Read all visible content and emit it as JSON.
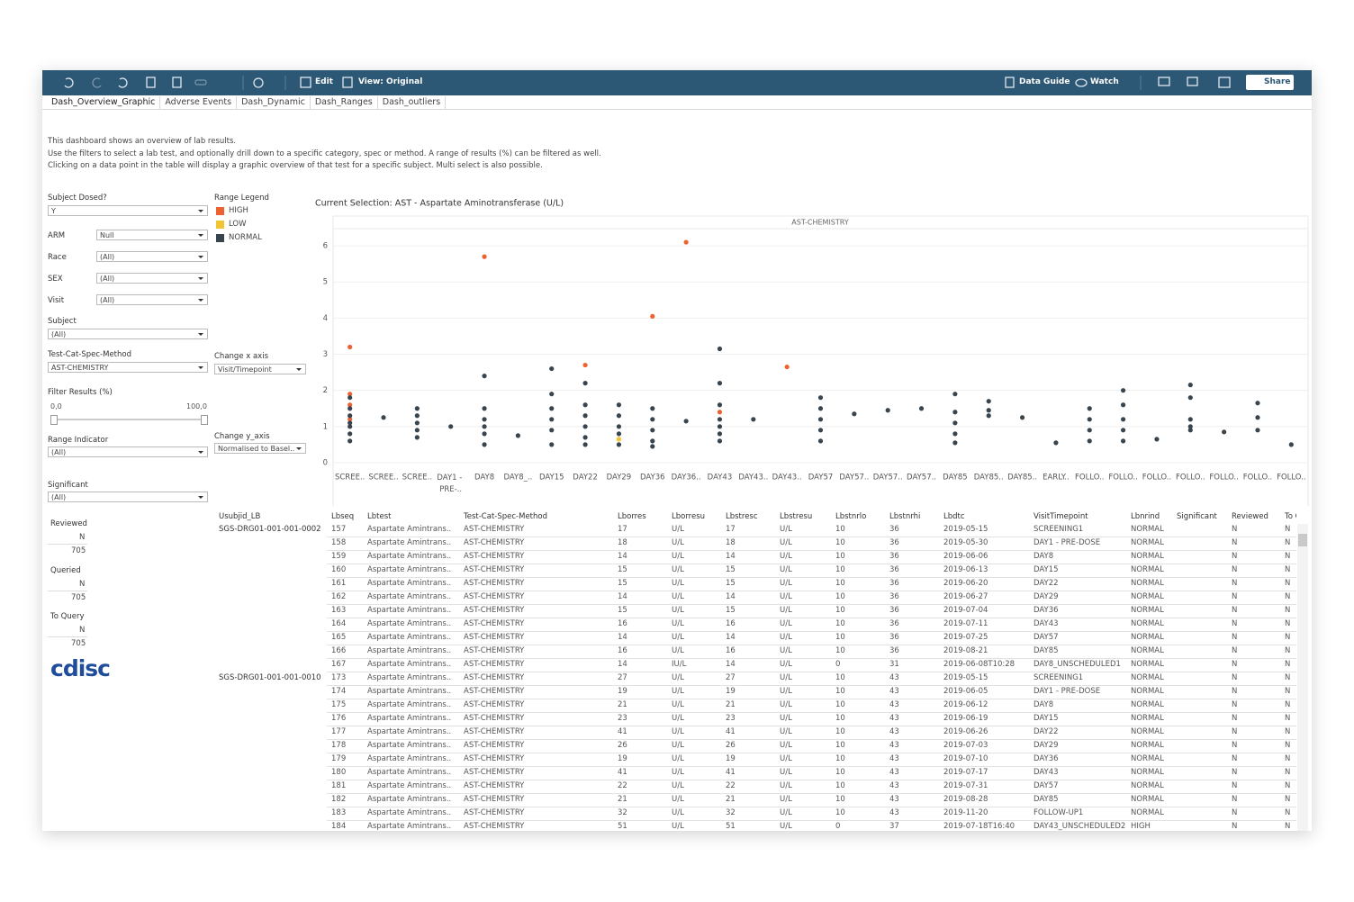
{
  "toolbar": {
    "edit": "Edit",
    "view": "View: Original",
    "data_guide": "Data Guide",
    "watch": "Watch",
    "share": "Share"
  },
  "tabs": [
    "Dash_Overview_Graphic",
    "Adverse Events",
    "Dash_Dynamic",
    "Dash_Ranges",
    "Dash_outliers"
  ],
  "description": [
    "This dashboard shows an overview of lab results.",
    "Use the filters to select a lab test, and optionally drill down to a specific category, spec or method. A range of results (%) can be filtered as well.",
    "Clicking on a data point in the table will display a graphic overview of that test for a specific subject. Multi select is also possible."
  ],
  "filters": {
    "subject_dosed": {
      "label": "Subject Dosed?",
      "value": "Y"
    },
    "arm": {
      "label": "ARM",
      "value": "Null"
    },
    "race": {
      "label": "Race",
      "value": "(All)"
    },
    "sex": {
      "label": "SEX",
      "value": "(All)"
    },
    "visit": {
      "label": "Visit",
      "value": "(All)"
    },
    "subject": {
      "label": "Subject",
      "value": "(All)"
    },
    "test": {
      "label": "Test-Cat-Spec-Method",
      "value": "AST-CHEMISTRY"
    },
    "results": {
      "label": "Filter Results (%)",
      "min": "0,0",
      "max": "100,0"
    },
    "range_indicator": {
      "label": "Range Indicator",
      "value": "(All)"
    },
    "significant": {
      "label": "Significant",
      "value": "(All)"
    }
  },
  "range_legend_title": "Range Legend",
  "axis_controls": {
    "x": {
      "label": "Change x axis",
      "value": "Visit/Timepoint"
    },
    "y": {
      "label": "Change y_axis",
      "value": "Normalised to Basel.."
    }
  },
  "review_counts": [
    {
      "label": "Reviewed",
      "flag": "N",
      "count": 705
    },
    {
      "label": "Queried",
      "flag": "N",
      "count": 705
    },
    {
      "label": "To Query",
      "flag": "N",
      "count": 705
    }
  ],
  "logo": "cdisc",
  "chart_data": {
    "type": "strip",
    "title": "Current Selection: AST - Aspartate Aminotransferase (U/L)",
    "panel": "AST-CHEMISTRY",
    "categories": [
      "SCREE..",
      "SCREE..",
      "SCREE..",
      "DAY1 - PRE-..",
      "DAY8",
      "DAY8_..",
      "DAY15",
      "DAY22",
      "DAY29",
      "DAY36",
      "DAY36..",
      "DAY43",
      "DAY43..",
      "DAY43..",
      "DAY57",
      "DAY57..",
      "DAY57..",
      "DAY57..",
      "DAY85",
      "DAY85..",
      "DAY85..",
      "EARLY..",
      "FOLLO..",
      "FOLLO..",
      "FOLLO..",
      "FOLLO..",
      "FOLLO..",
      "FOLLO..",
      "FOLLO.."
    ],
    "ylim": [
      -0.2,
      6.45
    ],
    "yticks": [
      0,
      1,
      2,
      3,
      4,
      5,
      6
    ],
    "grid": true,
    "series": [
      {
        "name": "HIGH",
        "color": "#ee6130",
        "values": [
          [
            3.2,
            1.9,
            1.6,
            1.2
          ],
          [],
          [],
          [],
          [
            5.7
          ],
          [],
          [],
          [
            2.7
          ],
          [],
          [
            4.05
          ],
          [
            6.1
          ],
          [
            1.4
          ],
          [],
          [
            2.65
          ],
          [],
          [],
          [],
          [],
          [],
          [],
          [],
          [],
          [],
          [],
          [],
          [],
          [],
          [],
          []
        ]
      },
      {
        "name": "LOW",
        "color": "#f2c431",
        "values": [
          [],
          [],
          [],
          [],
          [],
          [],
          [],
          [],
          [
            0.65
          ],
          [],
          [],
          [],
          [],
          [],
          [],
          [],
          [],
          [],
          [],
          [],
          [],
          [],
          [],
          [],
          [],
          [],
          [],
          [],
          []
        ]
      },
      {
        "name": "NORMAL",
        "color": "#38454f",
        "values": [
          [
            1.8,
            1.5,
            1.3,
            1.1,
            1.0,
            0.8,
            0.6
          ],
          [
            1.25
          ],
          [
            1.5,
            1.3,
            1.1,
            0.9,
            0.7
          ],
          [
            1.0
          ],
          [
            2.4,
            1.5,
            1.2,
            1.0,
            0.8,
            0.5
          ],
          [
            0.75
          ],
          [
            2.6,
            1.9,
            1.5,
            1.2,
            0.9,
            0.5
          ],
          [
            2.2,
            1.6,
            1.3,
            1.0,
            0.7,
            0.5
          ],
          [
            1.6,
            1.3,
            1.0,
            0.8,
            0.5
          ],
          [
            1.5,
            1.2,
            0.9,
            0.6,
            0.45
          ],
          [
            1.15
          ],
          [
            3.15,
            2.2,
            1.6,
            1.2,
            1.0,
            0.8,
            0.6
          ],
          [
            1.2
          ],
          [],
          [
            1.8,
            1.5,
            1.2,
            0.9,
            0.6
          ],
          [
            1.35
          ],
          [
            1.45
          ],
          [
            1.5
          ],
          [
            1.9,
            1.4,
            1.1,
            0.8,
            0.55
          ],
          [
            1.7,
            1.45,
            1.3
          ],
          [
            1.25
          ],
          [
            0.55
          ],
          [
            1.5,
            1.2,
            0.9,
            0.6
          ],
          [
            2.0,
            1.6,
            1.2,
            0.9,
            0.6
          ],
          [
            0.65
          ],
          [
            2.15,
            1.8,
            1.2,
            1.0,
            0.9
          ],
          [
            0.85
          ],
          [
            1.65,
            1.25,
            0.9
          ],
          [
            0.5
          ]
        ]
      }
    ]
  },
  "table": {
    "columns": [
      "Usubjid_LB",
      "Lbseq",
      "Lbtest",
      "Test-Cat-Spec-Method",
      "Lborres",
      "Lborresu",
      "Lbstresc",
      "Lbstresu",
      "Lbstnrlo",
      "Lbstnrhi",
      "Lbdtc",
      "VisitTimepoint",
      "Lbnrind",
      "Significant",
      "Reviewed",
      "To Query"
    ],
    "rows": [
      [
        "SGS-DRG01-001-001-0002",
        157,
        "Aspartate Amintrans..",
        "AST-CHEMISTRY",
        17,
        "U/L",
        17,
        "U/L",
        10,
        36,
        "2019-05-15",
        "SCREENING1",
        "NORMAL",
        null,
        "N",
        "N"
      ],
      [
        null,
        158,
        "Aspartate Amintrans..",
        "AST-CHEMISTRY",
        18,
        "U/L",
        18,
        "U/L",
        10,
        36,
        "2019-05-30",
        "DAY1 - PRE-DOSE",
        "NORMAL",
        null,
        "N",
        "N"
      ],
      [
        null,
        159,
        "Aspartate Amintrans..",
        "AST-CHEMISTRY",
        14,
        "U/L",
        14,
        "U/L",
        10,
        36,
        "2019-06-06",
        "DAY8",
        "NORMAL",
        null,
        "N",
        "N"
      ],
      [
        null,
        160,
        "Aspartate Amintrans..",
        "AST-CHEMISTRY",
        15,
        "U/L",
        15,
        "U/L",
        10,
        36,
        "2019-06-13",
        "DAY15",
        "NORMAL",
        null,
        "N",
        "N"
      ],
      [
        null,
        161,
        "Aspartate Amintrans..",
        "AST-CHEMISTRY",
        15,
        "U/L",
        15,
        "U/L",
        10,
        36,
        "2019-06-20",
        "DAY22",
        "NORMAL",
        null,
        "N",
        "N"
      ],
      [
        null,
        162,
        "Aspartate Amintrans..",
        "AST-CHEMISTRY",
        14,
        "U/L",
        14,
        "U/L",
        10,
        36,
        "2019-06-27",
        "DAY29",
        "NORMAL",
        null,
        "N",
        "N"
      ],
      [
        null,
        163,
        "Aspartate Amintrans..",
        "AST-CHEMISTRY",
        15,
        "U/L",
        15,
        "U/L",
        10,
        36,
        "2019-07-04",
        "DAY36",
        "NORMAL",
        null,
        "N",
        "N"
      ],
      [
        null,
        164,
        "Aspartate Amintrans..",
        "AST-CHEMISTRY",
        16,
        "U/L",
        16,
        "U/L",
        10,
        36,
        "2019-07-11",
        "DAY43",
        "NORMAL",
        null,
        "N",
        "N"
      ],
      [
        null,
        165,
        "Aspartate Amintrans..",
        "AST-CHEMISTRY",
        14,
        "U/L",
        14,
        "U/L",
        10,
        36,
        "2019-07-25",
        "DAY57",
        "NORMAL",
        null,
        "N",
        "N"
      ],
      [
        null,
        166,
        "Aspartate Amintrans..",
        "AST-CHEMISTRY",
        16,
        "U/L",
        16,
        "U/L",
        10,
        36,
        "2019-08-21",
        "DAY85",
        "NORMAL",
        null,
        "N",
        "N"
      ],
      [
        null,
        167,
        "Aspartate Amintrans..",
        "AST-CHEMISTRY",
        14,
        "IU/L",
        14,
        "U/L",
        0,
        31,
        "2019-06-08T10:28",
        "DAY8_UNSCHEDULED1",
        "NORMAL",
        null,
        "N",
        "N"
      ],
      [
        "SGS-DRG01-001-001-0010",
        173,
        "Aspartate Amintrans..",
        "AST-CHEMISTRY",
        27,
        "U/L",
        27,
        "U/L",
        10,
        43,
        "2019-05-15",
        "SCREENING1",
        "NORMAL",
        null,
        "N",
        "N"
      ],
      [
        null,
        174,
        "Aspartate Amintrans..",
        "AST-CHEMISTRY",
        19,
        "U/L",
        19,
        "U/L",
        10,
        43,
        "2019-06-05",
        "DAY1 - PRE-DOSE",
        "NORMAL",
        null,
        "N",
        "N"
      ],
      [
        null,
        175,
        "Aspartate Amintrans..",
        "AST-CHEMISTRY",
        21,
        "U/L",
        21,
        "U/L",
        10,
        43,
        "2019-06-12",
        "DAY8",
        "NORMAL",
        null,
        "N",
        "N"
      ],
      [
        null,
        176,
        "Aspartate Amintrans..",
        "AST-CHEMISTRY",
        23,
        "U/L",
        23,
        "U/L",
        10,
        43,
        "2019-06-19",
        "DAY15",
        "NORMAL",
        null,
        "N",
        "N"
      ],
      [
        null,
        177,
        "Aspartate Amintrans..",
        "AST-CHEMISTRY",
        41,
        "U/L",
        41,
        "U/L",
        10,
        43,
        "2019-06-26",
        "DAY22",
        "NORMAL",
        null,
        "N",
        "N"
      ],
      [
        null,
        178,
        "Aspartate Amintrans..",
        "AST-CHEMISTRY",
        26,
        "U/L",
        26,
        "U/L",
        10,
        43,
        "2019-07-03",
        "DAY29",
        "NORMAL",
        null,
        "N",
        "N"
      ],
      [
        null,
        179,
        "Aspartate Amintrans..",
        "AST-CHEMISTRY",
        19,
        "U/L",
        19,
        "U/L",
        10,
        43,
        "2019-07-10",
        "DAY36",
        "NORMAL",
        null,
        "N",
        "N"
      ],
      [
        null,
        180,
        "Aspartate Amintrans..",
        "AST-CHEMISTRY",
        41,
        "U/L",
        41,
        "U/L",
        10,
        43,
        "2019-07-17",
        "DAY43",
        "NORMAL",
        null,
        "N",
        "N"
      ],
      [
        null,
        181,
        "Aspartate Amintrans..",
        "AST-CHEMISTRY",
        22,
        "U/L",
        22,
        "U/L",
        10,
        43,
        "2019-07-31",
        "DAY57",
        "NORMAL",
        null,
        "N",
        "N"
      ],
      [
        null,
        182,
        "Aspartate Amintrans..",
        "AST-CHEMISTRY",
        21,
        "U/L",
        21,
        "U/L",
        10,
        43,
        "2019-08-28",
        "DAY85",
        "NORMAL",
        null,
        "N",
        "N"
      ],
      [
        null,
        183,
        "Aspartate Amintrans..",
        "AST-CHEMISTRY",
        32,
        "U/L",
        32,
        "U/L",
        10,
        43,
        "2019-11-20",
        "FOLLOW-UP1",
        "NORMAL",
        null,
        "N",
        "N"
      ],
      [
        null,
        184,
        "Aspartate Amintrans..",
        "AST-CHEMISTRY",
        51,
        "U/L",
        51,
        "U/L",
        0,
        37,
        "2019-07-18T16:40",
        "DAY43_UNSCHEDULED2",
        "HIGH",
        null,
        "N",
        "N"
      ]
    ]
  }
}
